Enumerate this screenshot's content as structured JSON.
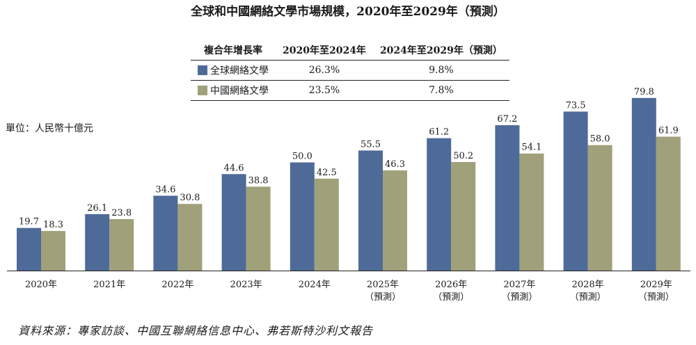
{
  "chart_data": {
    "type": "bar",
    "title": "全球和中國網絡文學市場規模，2020年至2029年（預測）",
    "unit_label": "單位：人民幣十億元",
    "categories": [
      "2020年",
      "2021年",
      "2022年",
      "2023年",
      "2024年",
      "2025年\n（預測）",
      "2026年\n（預測）",
      "2027年\n（預測）",
      "2028年\n（預測）",
      "2029年\n（預測）"
    ],
    "series": [
      {
        "name": "全球網絡文學",
        "color": "#4e6a98",
        "values": [
          19.7,
          26.1,
          34.6,
          44.6,
          50.0,
          55.5,
          61.2,
          67.2,
          73.5,
          79.8
        ],
        "labels": [
          "19.7",
          "26.1",
          "34.6",
          "44.6",
          "50.0",
          "55.5",
          "61.2",
          "67.2",
          "73.5",
          "79.8"
        ]
      },
      {
        "name": "中國網絡文學",
        "color": "#a0a07a",
        "values": [
          18.3,
          23.8,
          30.8,
          38.8,
          42.5,
          46.3,
          50.2,
          54.1,
          58.0,
          61.9
        ],
        "labels": [
          "18.3",
          "23.8",
          "30.8",
          "38.8",
          "42.5",
          "46.3",
          "50.2",
          "54.1",
          "58.0",
          "61.9"
        ]
      }
    ],
    "ylim": [
      0,
      90
    ],
    "grid": false,
    "xlabel": "",
    "ylabel": ""
  },
  "growth_table": {
    "header": [
      "複合年增長率",
      "2020年至2024年",
      "2024年至2029年（預測）"
    ],
    "rows": [
      {
        "series": "全球網絡文學",
        "color": "#4e6a98",
        "cagr_2020_2024": "26.3%",
        "cagr_2024_2029": "9.8%"
      },
      {
        "series": "中國網絡文學",
        "color": "#a0a07a",
        "cagr_2020_2024": "23.5%",
        "cagr_2024_2029": "7.8%"
      }
    ]
  },
  "source": "資料來源：專家訪談、中國互聯網絡信息中心、弗若斯特沙利文報告"
}
